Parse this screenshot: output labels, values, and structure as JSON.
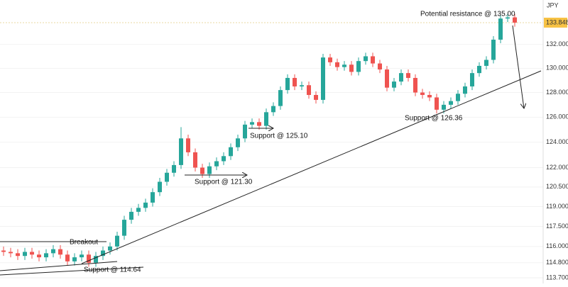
{
  "chart_data": {
    "type": "candlestick",
    "currency": "JPY",
    "log_scale": true,
    "ylim": [
      113.29,
      135.8
    ],
    "yticks": [
      {
        "value": 132,
        "label": "132.000"
      },
      {
        "value": 130,
        "label": "130.000"
      },
      {
        "value": 128,
        "label": "128.000"
      },
      {
        "value": 126,
        "label": "126.000"
      },
      {
        "value": 124,
        "label": "124.000"
      },
      {
        "value": 122,
        "label": "122.000"
      },
      {
        "value": 120.5,
        "label": "120.500"
      },
      {
        "value": 119,
        "label": "119.000"
      },
      {
        "value": 117.5,
        "label": "117.500"
      },
      {
        "value": 116,
        "label": "116.000"
      },
      {
        "value": 114.8,
        "label": "114.800"
      },
      {
        "value": 113.7,
        "label": "113.700"
      }
    ],
    "last_price": 133.848,
    "up_color": "#26a69a",
    "down_color": "#ef5350",
    "open": [
      115.7,
      115.6,
      115.5,
      115.3,
      115.6,
      115.4,
      115.2,
      115.5,
      115.8,
      115.4,
      114.9,
      115.2,
      115.4,
      114.8,
      115.3,
      115.7,
      116.0,
      116.8,
      118.0,
      118.6,
      118.9,
      119.3,
      120.1,
      120.9,
      121.6,
      122.2,
      124.3,
      123.2,
      122.0,
      121.5,
      122.1,
      122.5,
      122.9,
      123.6,
      124.3,
      125.4,
      125.6,
      125.3,
      126.4,
      126.9,
      128.2,
      129.2,
      128.5,
      128.6,
      127.8,
      127.4,
      130.9,
      130.5,
      130.1,
      130.3,
      129.7,
      130.6,
      131.0,
      130.4,
      129.9,
      128.4,
      128.9,
      129.6,
      129.2,
      128.0,
      127.8,
      127.6,
      126.6,
      127.0,
      127.3,
      127.9,
      128.5,
      129.6,
      130.2,
      130.7,
      132.4,
      134.2,
      134.3
    ],
    "high": [
      116.0,
      115.9,
      115.8,
      115.9,
      115.9,
      115.7,
      115.8,
      116.1,
      116.1,
      115.7,
      115.5,
      115.7,
      115.7,
      115.6,
      116.0,
      116.3,
      117.1,
      118.3,
      118.9,
      119.2,
      119.6,
      120.4,
      121.2,
      121.9,
      122.5,
      125.2,
      124.6,
      123.5,
      122.3,
      122.4,
      122.8,
      123.2,
      123.9,
      124.6,
      125.7,
      125.9,
      125.9,
      126.7,
      127.2,
      128.5,
      129.5,
      129.5,
      128.9,
      128.9,
      128.1,
      131.2,
      131.2,
      130.8,
      130.6,
      130.6,
      130.9,
      131.3,
      131.3,
      130.7,
      130.2,
      129.2,
      129.9,
      129.9,
      129.5,
      128.3,
      128.1,
      127.9,
      127.3,
      127.6,
      128.2,
      128.8,
      129.9,
      130.5,
      131.0,
      132.7,
      134.5,
      134.6,
      134.6
    ],
    "low": [
      115.3,
      115.2,
      115.0,
      115.0,
      115.1,
      114.9,
      114.9,
      115.2,
      115.1,
      114.6,
      114.6,
      114.9,
      114.5,
      114.5,
      115.0,
      115.4,
      115.7,
      116.5,
      117.7,
      118.3,
      118.6,
      119.0,
      119.8,
      120.6,
      121.3,
      121.9,
      122.9,
      121.7,
      121.2,
      121.2,
      121.8,
      122.2,
      122.6,
      123.3,
      124.0,
      125.1,
      125.0,
      125.0,
      126.1,
      126.6,
      127.9,
      128.2,
      128.2,
      127.5,
      127.1,
      127.1,
      130.2,
      129.8,
      129.8,
      129.4,
      129.4,
      130.3,
      130.1,
      129.6,
      128.1,
      128.1,
      128.6,
      128.9,
      127.7,
      127.5,
      127.3,
      126.3,
      126.3,
      126.7,
      127.0,
      127.6,
      128.2,
      129.3,
      129.9,
      130.4,
      132.1,
      133.9,
      133.5
    ],
    "close": [
      115.6,
      115.5,
      115.3,
      115.6,
      115.4,
      115.2,
      115.5,
      115.8,
      115.4,
      114.9,
      115.2,
      115.4,
      114.8,
      115.3,
      115.7,
      116.0,
      116.8,
      118.0,
      118.6,
      118.9,
      119.3,
      120.1,
      120.9,
      121.6,
      122.2,
      124.3,
      123.2,
      122.0,
      121.5,
      122.1,
      122.5,
      122.9,
      123.6,
      124.3,
      125.4,
      125.6,
      125.3,
      126.4,
      126.9,
      128.2,
      129.2,
      128.5,
      128.6,
      127.8,
      127.4,
      130.9,
      130.5,
      130.1,
      130.3,
      129.7,
      130.6,
      131.0,
      130.4,
      129.9,
      128.4,
      128.9,
      129.6,
      129.2,
      128.0,
      127.8,
      127.6,
      126.6,
      127.0,
      127.3,
      127.9,
      128.5,
      129.6,
      130.2,
      130.7,
      132.4,
      134.2,
      134.3,
      133.85
    ],
    "annotations": [
      "Potential resistance @ 135.00",
      "Support @ 125.10",
      "Support @ 121.30",
      "Support @ 126.36",
      "Breakout",
      "Support @ 114.64"
    ]
  }
}
